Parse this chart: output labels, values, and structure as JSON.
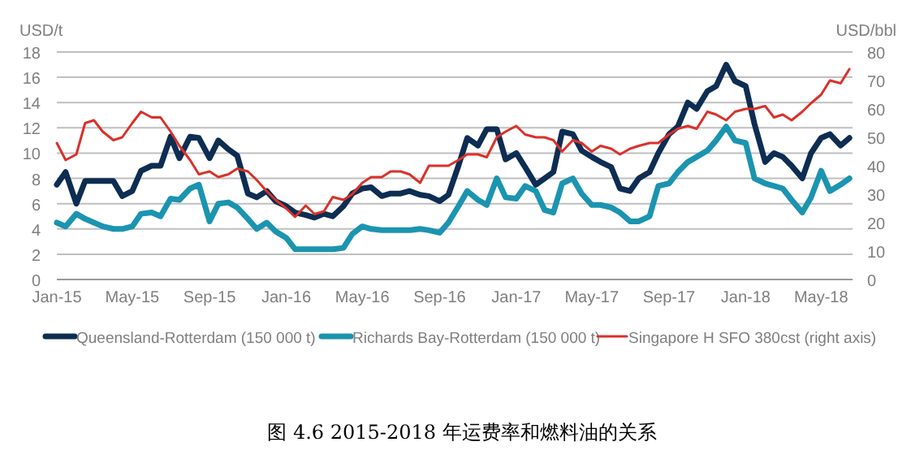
{
  "chart_data": {
    "type": "line",
    "title": "图 4.6 2015-2018 年运费率和燃料油的关系",
    "ylabel": "USD/t",
    "y2label": "USD/bbl",
    "x": [
      "2015-01-01",
      "2015-01-15",
      "2015-02-01",
      "2015-02-15",
      "2015-03-01",
      "2015-03-15",
      "2015-04-01",
      "2015-04-15",
      "2015-05-01",
      "2015-05-15",
      "2015-06-01",
      "2015-06-15",
      "2015-07-01",
      "2015-07-15",
      "2015-08-01",
      "2015-08-15",
      "2015-09-01",
      "2015-09-15",
      "2015-10-01",
      "2015-10-15",
      "2015-11-01",
      "2015-11-15",
      "2015-12-01",
      "2015-12-15",
      "2016-01-01",
      "2016-01-15",
      "2016-02-01",
      "2016-02-15",
      "2016-03-01",
      "2016-03-15",
      "2016-04-01",
      "2016-04-15",
      "2016-05-01",
      "2016-05-15",
      "2016-06-01",
      "2016-06-15",
      "2016-07-01",
      "2016-07-15",
      "2016-08-01",
      "2016-08-15",
      "2016-09-01",
      "2016-09-15",
      "2016-10-01",
      "2016-10-15",
      "2016-11-01",
      "2016-11-15",
      "2016-12-01",
      "2016-12-15",
      "2017-01-01",
      "2017-01-15",
      "2017-02-01",
      "2017-02-15",
      "2017-03-01",
      "2017-03-15",
      "2017-04-01",
      "2017-04-15",
      "2017-05-01",
      "2017-05-15",
      "2017-06-01",
      "2017-06-15",
      "2017-07-01",
      "2017-07-15",
      "2017-08-01",
      "2017-08-15",
      "2017-09-01",
      "2017-09-15",
      "2017-10-01",
      "2017-10-15",
      "2017-11-01",
      "2017-11-15",
      "2017-12-01",
      "2017-12-15",
      "2018-01-01",
      "2018-01-15",
      "2018-02-01",
      "2018-02-15",
      "2018-03-01",
      "2018-03-15",
      "2018-04-01",
      "2018-04-15",
      "2018-05-01",
      "2018-05-15",
      "2018-06-01",
      "2018-06-15"
    ],
    "series": [
      {
        "name": "Queensland-Rotterdam (150 000 t)",
        "color": "#0d2d52",
        "values": [
          7.5,
          8.5,
          6.0,
          7.8,
          7.8,
          7.8,
          7.8,
          6.6,
          7.0,
          8.6,
          9.0,
          9.0,
          11.3,
          9.6,
          11.3,
          11.2,
          9.6,
          11.0,
          10.3,
          9.8,
          6.8,
          6.5,
          7.0,
          6.2,
          5.8,
          5.3,
          5.1,
          4.9,
          5.2,
          5.0,
          5.8,
          6.8,
          7.2,
          7.3,
          6.6,
          6.8,
          6.8,
          7.0,
          6.7,
          6.6,
          6.2,
          6.7,
          9.0,
          11.2,
          10.6,
          11.9,
          11.9,
          9.5,
          10.0,
          8.9,
          7.5,
          8.0,
          8.5,
          11.7,
          11.5,
          10.2,
          9.7,
          9.3,
          8.9,
          7.2,
          7.0,
          8.0,
          8.5,
          10.0,
          11.5,
          12.1,
          14.0,
          13.5,
          14.9,
          15.3,
          17.0,
          15.7,
          15.3,
          12.3,
          9.3,
          10.0,
          9.7,
          9.0,
          8.0,
          10.0,
          11.2,
          11.5,
          10.6,
          11.2
        ]
      },
      {
        "name": "Richards Bay-Rotterdam (150 000 t)",
        "color": "#1b94b0",
        "values": [
          4.5,
          4.2,
          5.2,
          4.8,
          4.5,
          4.2,
          4.0,
          4.0,
          4.2,
          5.2,
          5.3,
          5.0,
          6.4,
          6.3,
          7.2,
          7.5,
          4.6,
          6.0,
          6.1,
          5.7,
          4.8,
          4.0,
          4.5,
          3.8,
          3.3,
          2.4,
          2.4,
          2.4,
          2.4,
          2.4,
          2.5,
          3.6,
          4.2,
          4.0,
          3.9,
          3.9,
          3.9,
          3.9,
          4.0,
          3.9,
          3.7,
          4.5,
          5.8,
          7.0,
          6.3,
          5.9,
          8.0,
          6.5,
          6.4,
          7.4,
          7.0,
          5.5,
          5.3,
          7.6,
          8.0,
          6.8,
          5.9,
          5.9,
          5.7,
          5.3,
          4.6,
          4.6,
          5.0,
          7.4,
          7.6,
          8.5,
          9.3,
          9.7,
          10.2,
          11.0,
          12.1,
          11.0,
          10.8,
          8.0,
          7.6,
          7.4,
          7.2,
          6.3,
          5.3,
          6.5,
          8.6,
          7.0,
          7.5,
          8.0
        ]
      },
      {
        "name": "Singapore H SFO 380cst (right axis)",
        "color": "#d9312b",
        "axis": "y2",
        "values": [
          48,
          42,
          44,
          55,
          56,
          52,
          49,
          50,
          55,
          59,
          57,
          57,
          52,
          47,
          42,
          37,
          38,
          36,
          37,
          39,
          38,
          35,
          31,
          28,
          25,
          22,
          26,
          23,
          24,
          29,
          28,
          30,
          34,
          36,
          36,
          38,
          38,
          37,
          34,
          40,
          40,
          40,
          42,
          44,
          44,
          43,
          50,
          52,
          54,
          51,
          50,
          50,
          49,
          45,
          49,
          48,
          45,
          47,
          46,
          44,
          46,
          47,
          48,
          48,
          51,
          53,
          54,
          53,
          59,
          58,
          56,
          59,
          60,
          60,
          61,
          57,
          58,
          56,
          59,
          62,
          65,
          70,
          69,
          74
        ]
      }
    ],
    "xlim": [
      "2015-01-01",
      "2018-06-20"
    ],
    "xticks": [
      {
        "value": "2015-01",
        "label": "Jan-15"
      },
      {
        "value": "2015-05",
        "label": "May-15"
      },
      {
        "value": "2015-09",
        "label": "Sep-15"
      },
      {
        "value": "2016-01",
        "label": "Jan-16"
      },
      {
        "value": "2016-05",
        "label": "May-16"
      },
      {
        "value": "2016-09",
        "label": "Sep-16"
      },
      {
        "value": "2017-01",
        "label": "Jan-17"
      },
      {
        "value": "2017-05",
        "label": "May-17"
      },
      {
        "value": "2017-09",
        "label": "Sep-17"
      },
      {
        "value": "2018-01",
        "label": "Jan-18"
      },
      {
        "value": "2018-05",
        "label": "May-18"
      }
    ],
    "ylim": [
      0,
      18
    ],
    "yticks": [
      0,
      2,
      4,
      6,
      8,
      10,
      12,
      14,
      16,
      18
    ],
    "y2lim": [
      0,
      80
    ],
    "y2ticks": [
      0,
      10,
      20,
      30,
      40,
      50,
      60,
      70,
      80
    ],
    "grid": "y",
    "legend": "bottom",
    "marker": "none",
    "line_style": "solid"
  }
}
